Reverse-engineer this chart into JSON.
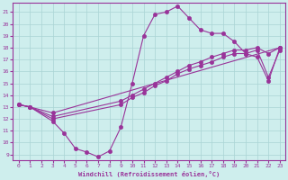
{
  "bg_color": "#ceeeed",
  "grid_color": "#aad4d4",
  "line_color": "#993399",
  "xlabel": "Windchill (Refroidissement éolien,°C)",
  "xlim": [
    -0.5,
    23.5
  ],
  "ylim": [
    8.5,
    21.8
  ],
  "xticks": [
    0,
    1,
    2,
    3,
    4,
    5,
    6,
    7,
    8,
    9,
    10,
    11,
    12,
    13,
    14,
    15,
    16,
    17,
    18,
    19,
    20,
    21,
    22,
    23
  ],
  "yticks": [
    9,
    10,
    11,
    12,
    13,
    14,
    15,
    16,
    17,
    18,
    19,
    20,
    21
  ],
  "line1_x": [
    0,
    1,
    3,
    4,
    5,
    6,
    7,
    8,
    9,
    10,
    11,
    12,
    13,
    14,
    15,
    16,
    17,
    18,
    19,
    20,
    21,
    22,
    23
  ],
  "line1_y": [
    13.2,
    13.0,
    11.8,
    10.8,
    9.5,
    9.2,
    8.8,
    9.3,
    11.3,
    15.0,
    19.0,
    20.8,
    21.0,
    21.5,
    20.5,
    19.5,
    19.2,
    19.2,
    18.5,
    17.5,
    17.2,
    15.2,
    18.0
  ],
  "line2_x": [
    0,
    1,
    3,
    23
  ],
  "line2_y": [
    13.2,
    13.0,
    12.5,
    18.0
  ],
  "line3_x": [
    0,
    1,
    3,
    9,
    10,
    11,
    12,
    13,
    14,
    15,
    16,
    17,
    18,
    19,
    20,
    21,
    22,
    23
  ],
  "line3_y": [
    13.2,
    13.0,
    12.2,
    13.5,
    14.0,
    14.5,
    15.0,
    15.5,
    16.0,
    16.5,
    16.8,
    17.2,
    17.5,
    17.8,
    17.8,
    18.0,
    17.5,
    18.0
  ],
  "line4_x": [
    0,
    1,
    3,
    9,
    10,
    11,
    12,
    13,
    14,
    15,
    16,
    17,
    18,
    19,
    20,
    21,
    22,
    23
  ],
  "line4_y": [
    13.2,
    13.0,
    12.0,
    13.2,
    13.8,
    14.2,
    14.8,
    15.2,
    15.8,
    16.2,
    16.5,
    16.8,
    17.2,
    17.5,
    17.5,
    17.8,
    15.5,
    17.8
  ]
}
